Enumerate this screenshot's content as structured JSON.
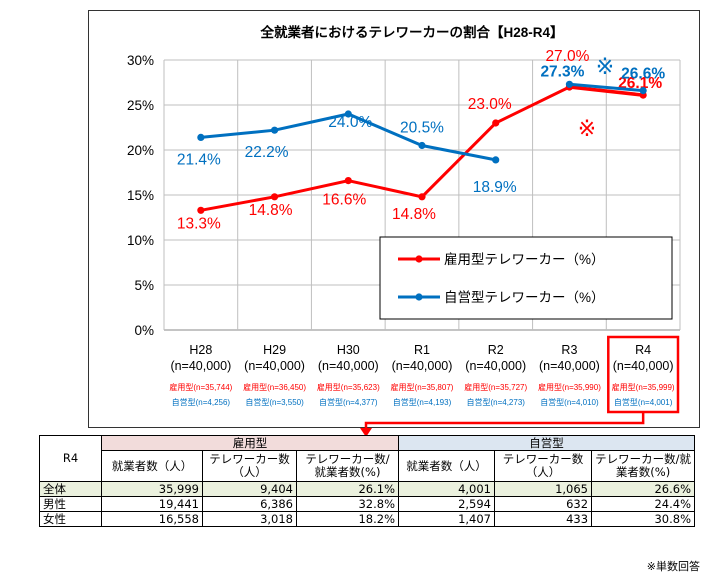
{
  "chart_data": {
    "type": "line",
    "title": "全就業者におけるテレワーカーの割合【H28-R4】",
    "categories": [
      {
        "label": "H28",
        "n": "(n=40,000)",
        "koyo_n": "雇用型(n=35,744)",
        "jiei_n": "自営型(n=4,256)"
      },
      {
        "label": "H29",
        "n": "(n=40,000)",
        "koyo_n": "雇用型(n=36,450)",
        "jiei_n": "自営型(n=3,550)"
      },
      {
        "label": "H30",
        "n": "(n=40,000)",
        "koyo_n": "雇用型(n=35,623)",
        "jiei_n": "自営型(n=4,377)"
      },
      {
        "label": "R1",
        "n": "(n=40,000)",
        "koyo_n": "雇用型(n=35,807)",
        "jiei_n": "自営型(n=4,193)"
      },
      {
        "label": "R2",
        "n": "(n=40,000)",
        "koyo_n": "雇用型(n=35,727)",
        "jiei_n": "自営型(n=4,273)"
      },
      {
        "label": "R3",
        "n": "(n=40,000)",
        "koyo_n": "雇用型(n=35,990)",
        "jiei_n": "自営型(n=4,010)"
      },
      {
        "label": "R4",
        "n": "(n=40,000)",
        "koyo_n": "雇用型(n=35,999)",
        "jiei_n": "自営型(n=4,001)"
      }
    ],
    "ylim": [
      0,
      30
    ],
    "yticks": [
      {
        "value": 0,
        "label": "0%"
      },
      {
        "value": 5,
        "label": "5%"
      },
      {
        "value": 10,
        "label": "10%"
      },
      {
        "value": 15,
        "label": "15%"
      },
      {
        "value": 20,
        "label": "20%"
      },
      {
        "value": 25,
        "label": "25%"
      },
      {
        "value": 30,
        "label": "30%"
      }
    ],
    "grid": true,
    "legend_position": "center-right",
    "series": [
      {
        "name": "雇用型テレワーカー（%）",
        "color": "#ff0000",
        "segments": [
          {
            "x": [
              0,
              1,
              2,
              3,
              4,
              5
            ],
            "values": [
              13.3,
              14.8,
              16.6,
              14.8,
              23.0,
              27.0
            ],
            "labels": [
              "13.3%",
              "14.8%",
              "16.6%",
              "14.8%",
              "23.0%",
              "27.0%"
            ]
          },
          {
            "x": [
              5,
              6
            ],
            "values": [
              27.0,
              26.1
            ],
            "labels": [
              null,
              "26.1%"
            ]
          }
        ]
      },
      {
        "name": "自営型テレワーカー（%）",
        "color": "#0070c0",
        "segments": [
          {
            "x": [
              0,
              1,
              2,
              3,
              4
            ],
            "values": [
              21.4,
              22.2,
              24.0,
              20.5,
              18.9
            ],
            "labels": [
              "21.4%",
              "22.2%",
              "24.0%",
              "20.5%",
              "18.9%"
            ]
          },
          {
            "x": [
              5,
              6
            ],
            "values": [
              27.3,
              26.6
            ],
            "labels": [
              "27.3%",
              "26.6%"
            ]
          }
        ]
      }
    ],
    "annotations": [
      {
        "text": "※",
        "color": "#0070c0",
        "near": "自営型 R3-R4"
      },
      {
        "text": "※",
        "color": "#ff0000",
        "near": "雇用型 R3-R4"
      }
    ]
  },
  "table": {
    "corner": "R4",
    "groups": [
      {
        "label": "雇用型",
        "color": "#f2dcdb"
      },
      {
        "label": "自営型",
        "color": "#dce6f1"
      }
    ],
    "columns": [
      "就業者数（人）",
      "テレワーカー数（人）",
      "テレワーカー数/就業者数(%)",
      "就業者数（人）",
      "テレワーカー数（人）",
      "テレワーカー数/就業者数(%)"
    ],
    "rows": [
      {
        "label": "全体",
        "values": [
          "35,999",
          "9,404",
          "26.1%",
          "4,001",
          "1,065",
          "26.6%"
        ]
      },
      {
        "label": "男性",
        "values": [
          "19,441",
          "6,386",
          "32.8%",
          "2,594",
          "632",
          "24.4%"
        ]
      },
      {
        "label": "女性",
        "values": [
          "16,558",
          "3,018",
          "18.2%",
          "1,407",
          "433",
          "30.8%"
        ]
      }
    ]
  },
  "footnote": "※単数回答"
}
